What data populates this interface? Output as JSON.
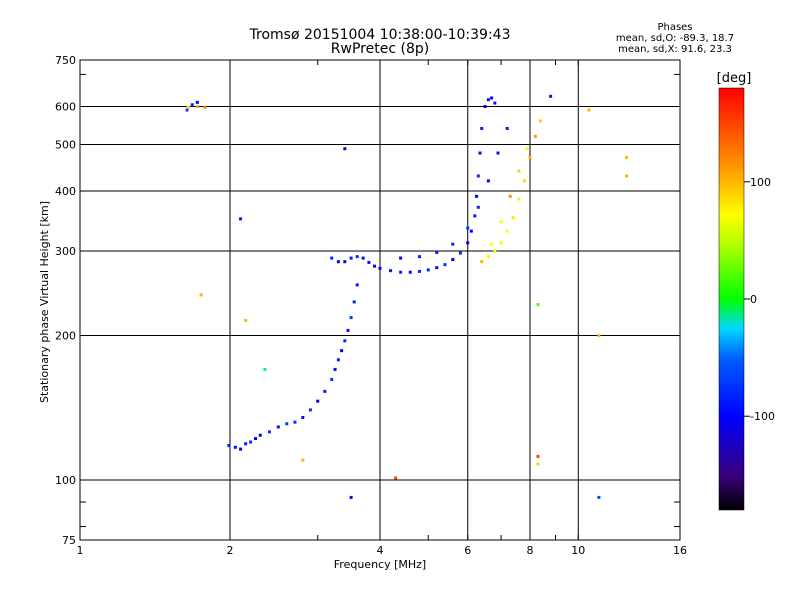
{
  "header": {
    "title_line1": "Tromsø 20151004 10:38:00-10:39:43",
    "title_line2": "RwPretec (8p)",
    "phase_title": "Phases",
    "phase_O": "mean, sd,O: -89.3, 18.7",
    "phase_X": "mean, sd,X:  91.6, 23.3"
  },
  "colorbar": {
    "unit_label": "[deg]",
    "ticks": [
      {
        "value": 100,
        "label": "100"
      },
      {
        "value": 0,
        "label": "0"
      },
      {
        "value": -100,
        "label": "-100"
      }
    ],
    "range": [
      -180,
      180
    ]
  },
  "chart_data": {
    "type": "scatter",
    "title": "Tromsø 20151004 10:38:00-10:39:43",
    "subtitle": "RwPretec (8p)",
    "xlabel": "Frequency [MHz]",
    "ylabel": "Stationary phase Virtual Height [km]",
    "x_scale": "log",
    "y_scale": "log",
    "xlim": [
      1,
      16
    ],
    "ylim": [
      75,
      750
    ],
    "x_ticks": [
      1,
      2,
      4,
      6,
      8,
      10,
      16
    ],
    "x_tick_labels": [
      "1",
      "2",
      "4",
      "6",
      "8",
      "10",
      "16"
    ],
    "y_ticks": [
      75,
      100,
      200,
      300,
      400,
      500,
      600,
      750
    ],
    "y_tick_labels": [
      "75",
      "100",
      "200",
      "300",
      "400",
      "500",
      "600",
      "750"
    ],
    "grid_x": [
      2,
      4,
      6,
      8,
      10
    ],
    "grid_y": [
      100,
      200,
      300,
      400,
      500,
      600
    ],
    "color_scale": "phase in degrees (rainbow: black=-180, blue=-100, green=0, yellow=100, red=180)",
    "series": [
      {
        "name": "O-mode",
        "mean_phase": -89.3,
        "points": [
          [
            1.99,
            118
          ],
          [
            2.05,
            117
          ],
          [
            2.1,
            116
          ],
          [
            2.15,
            119
          ],
          [
            2.2,
            120
          ],
          [
            2.25,
            122
          ],
          [
            2.3,
            124
          ],
          [
            2.4,
            126
          ],
          [
            2.5,
            129
          ],
          [
            2.6,
            131
          ],
          [
            2.7,
            132
          ],
          [
            2.8,
            135
          ],
          [
            2.9,
            140
          ],
          [
            3.0,
            146
          ],
          [
            3.1,
            153
          ],
          [
            3.2,
            162
          ],
          [
            3.25,
            170
          ],
          [
            3.3,
            178
          ],
          [
            3.35,
            186
          ],
          [
            3.4,
            195
          ],
          [
            3.45,
            205
          ],
          [
            3.5,
            218
          ],
          [
            3.55,
            235
          ],
          [
            3.6,
            255
          ],
          [
            3.2,
            290
          ],
          [
            3.3,
            285
          ],
          [
            3.4,
            285
          ],
          [
            3.5,
            290
          ],
          [
            3.6,
            292
          ],
          [
            3.7,
            290
          ],
          [
            3.8,
            284
          ],
          [
            3.9,
            279
          ],
          [
            4.0,
            276
          ],
          [
            4.2,
            273
          ],
          [
            4.4,
            271
          ],
          [
            4.6,
            271
          ],
          [
            4.8,
            272
          ],
          [
            5.0,
            274
          ],
          [
            5.2,
            277
          ],
          [
            5.4,
            281
          ],
          [
            5.6,
            288
          ],
          [
            5.8,
            297
          ],
          [
            6.0,
            312
          ],
          [
            6.1,
            330
          ],
          [
            6.2,
            355
          ],
          [
            6.25,
            390
          ],
          [
            6.3,
            430
          ],
          [
            6.35,
            480
          ],
          [
            6.4,
            540
          ],
          [
            6.5,
            600
          ],
          [
            6.6,
            620
          ],
          [
            6.7,
            625
          ],
          [
            6.8,
            610
          ],
          [
            4.4,
            290
          ],
          [
            4.8,
            292
          ],
          [
            5.2,
            298
          ],
          [
            5.6,
            310
          ],
          [
            6.0,
            335
          ],
          [
            6.3,
            370
          ],
          [
            6.6,
            420
          ],
          [
            6.9,
            480
          ],
          [
            7.2,
            540
          ],
          [
            1.64,
            590
          ],
          [
            1.68,
            605
          ],
          [
            1.72,
            612
          ]
        ]
      },
      {
        "name": "X-mode",
        "mean_phase": 91.6,
        "points": [
          [
            6.4,
            285
          ],
          [
            6.6,
            292
          ],
          [
            6.8,
            300
          ],
          [
            7.0,
            312
          ],
          [
            7.2,
            330
          ],
          [
            7.4,
            352
          ],
          [
            7.6,
            385
          ],
          [
            7.8,
            420
          ],
          [
            8.0,
            470
          ],
          [
            8.2,
            520
          ],
          [
            8.4,
            560
          ],
          [
            6.7,
            310
          ],
          [
            7.0,
            345
          ],
          [
            7.3,
            390
          ],
          [
            7.6,
            440
          ],
          [
            7.9,
            490
          ],
          [
            1.65,
            598
          ],
          [
            1.72,
            600
          ],
          [
            1.78,
            598
          ]
        ]
      }
    ],
    "scattered_points": [
      {
        "x": 2.1,
        "y": 350,
        "phase": -90
      },
      {
        "x": 2.15,
        "y": 215,
        "phase": 100
      },
      {
        "x": 1.75,
        "y": 243,
        "phase": 100
      },
      {
        "x": 3.5,
        "y": 92,
        "phase": -100
      },
      {
        "x": 4.3,
        "y": 101,
        "phase": 150
      },
      {
        "x": 8.3,
        "y": 112,
        "phase": 150
      },
      {
        "x": 8.3,
        "y": 108,
        "phase": 90
      },
      {
        "x": 8.3,
        "y": 232,
        "phase": 20
      },
      {
        "x": 10.5,
        "y": 590,
        "phase": 100
      },
      {
        "x": 12.5,
        "y": 470,
        "phase": 100
      },
      {
        "x": 12.5,
        "y": 430,
        "phase": 100
      },
      {
        "x": 11.0,
        "y": 200,
        "phase": 100
      },
      {
        "x": 11.0,
        "y": 92,
        "phase": -60
      },
      {
        "x": 2.8,
        "y": 110,
        "phase": 100
      },
      {
        "x": 3.4,
        "y": 490,
        "phase": -120
      },
      {
        "x": 8.8,
        "y": 630,
        "phase": -90
      },
      {
        "x": 2.35,
        "y": 170,
        "phase": -20
      }
    ]
  }
}
